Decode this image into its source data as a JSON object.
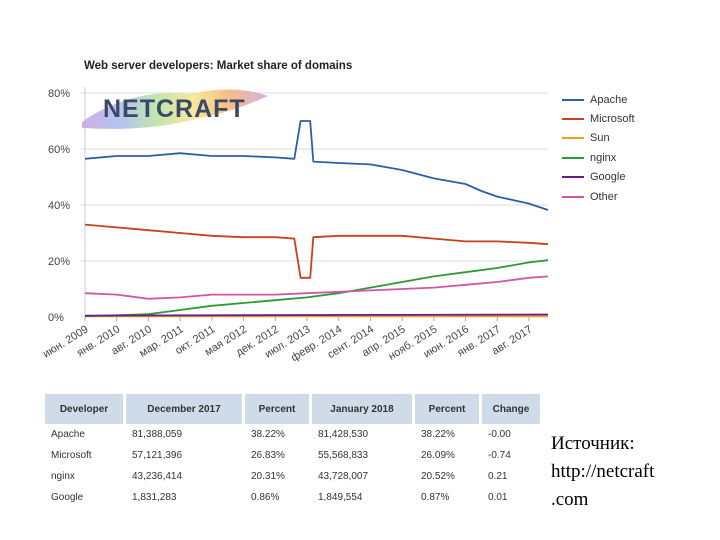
{
  "chart_data": {
    "type": "line",
    "title": "Web server developers: Market share of domains",
    "y_ticks": [
      "80%",
      "60%",
      "40%",
      "20%",
      "0%"
    ],
    "ylim": [
      0,
      80
    ],
    "x_ticks": [
      "июн. 2009",
      "янв. 2010",
      "авг. 2010",
      "мар. 2011",
      "окт. 2011",
      "мая 2012",
      "дек. 2012",
      "июл. 2013",
      "февр. 2014",
      "сент. 2014",
      "апр. 2015",
      "нояб. 2015",
      "июн. 2016",
      "янв. 2017",
      "авг. 2017"
    ],
    "legend_position": "right",
    "series": [
      {
        "name": "Apache",
        "color": "#2f5ea6",
        "values": [
          [
            0,
            56.5
          ],
          [
            1,
            57.5
          ],
          [
            2,
            57.5
          ],
          [
            3,
            58.5
          ],
          [
            4,
            57.5
          ],
          [
            5,
            57.5
          ],
          [
            6,
            57
          ],
          [
            6.6,
            56.5
          ],
          [
            6.8,
            70
          ],
          [
            7.1,
            70
          ],
          [
            7.2,
            55.5
          ],
          [
            8,
            55
          ],
          [
            9,
            54.5
          ],
          [
            10,
            52.5
          ],
          [
            11,
            49.5
          ],
          [
            12,
            47.5
          ],
          [
            12.5,
            45
          ],
          [
            13,
            43
          ],
          [
            14,
            40.5
          ],
          [
            14.6,
            38.2
          ]
        ]
      },
      {
        "name": "Microsoft",
        "color": "#c9401c",
        "values": [
          [
            0,
            33
          ],
          [
            1,
            32
          ],
          [
            2,
            31
          ],
          [
            3,
            30
          ],
          [
            4,
            29
          ],
          [
            5,
            28.5
          ],
          [
            6,
            28.5
          ],
          [
            6.6,
            28
          ],
          [
            6.8,
            14
          ],
          [
            7.1,
            14
          ],
          [
            7.2,
            28.5
          ],
          [
            8,
            29
          ],
          [
            9,
            29
          ],
          [
            10,
            29
          ],
          [
            11,
            28
          ],
          [
            12,
            27
          ],
          [
            13,
            27
          ],
          [
            14,
            26.5
          ],
          [
            14.6,
            26
          ]
        ]
      },
      {
        "name": "Sun",
        "color": "#f0a020",
        "values": [
          [
            0,
            0.3
          ],
          [
            14.6,
            0.3
          ]
        ]
      },
      {
        "name": "nginx",
        "color": "#2e9a36",
        "values": [
          [
            0,
            0.3
          ],
          [
            2,
            1
          ],
          [
            3,
            2.5
          ],
          [
            4,
            4
          ],
          [
            5,
            5
          ],
          [
            6,
            6
          ],
          [
            7,
            7
          ],
          [
            8,
            8.5
          ],
          [
            9,
            10.5
          ],
          [
            10,
            12.5
          ],
          [
            11,
            14.5
          ],
          [
            12,
            16
          ],
          [
            13,
            17.5
          ],
          [
            14,
            19.5
          ],
          [
            14.6,
            20.3
          ]
        ]
      },
      {
        "name": "Google",
        "color": "#6b1c8a",
        "values": [
          [
            0,
            0.5
          ],
          [
            14.6,
            0.9
          ]
        ]
      },
      {
        "name": "Other",
        "color": "#d157a6",
        "values": [
          [
            0,
            8.5
          ],
          [
            1,
            8
          ],
          [
            2,
            6.5
          ],
          [
            3,
            7
          ],
          [
            4,
            8
          ],
          [
            5,
            8
          ],
          [
            6,
            8
          ],
          [
            7,
            8.5
          ],
          [
            8,
            9
          ],
          [
            9,
            9.5
          ],
          [
            10,
            10
          ],
          [
            11,
            10.5
          ],
          [
            12,
            11.5
          ],
          [
            13,
            12.5
          ],
          [
            14,
            14
          ],
          [
            14.6,
            14.5
          ]
        ]
      }
    ]
  },
  "logo_text": "NETCRAFT",
  "table": {
    "headers": [
      "Developer",
      "December 2017",
      "Percent",
      "January 2018",
      "Percent",
      "Change"
    ],
    "rows": [
      [
        "Apache",
        "81,388,059",
        "38.22%",
        "81,428,530",
        "38.22%",
        "-0.00"
      ],
      [
        "Microsoft",
        "57,121,396",
        "26.83%",
        "55,568,833",
        "26.09%",
        "-0.74"
      ],
      [
        "nginx",
        "43,236,414",
        "20.31%",
        "43,728,007",
        "20.52%",
        "0.21"
      ],
      [
        "Google",
        "1,831,283",
        "0.86%",
        "1,849,554",
        "0.87%",
        "0.01"
      ]
    ]
  },
  "source": {
    "line1": "Источник:",
    "line2": "http://netcraft",
    "line3": ".com"
  }
}
